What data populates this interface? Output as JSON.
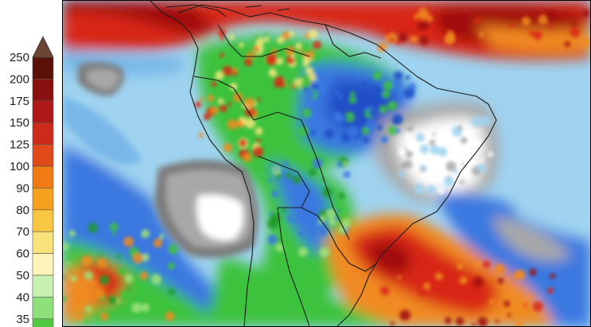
{
  "legend": {
    "ticks": [
      "250",
      "200",
      "175",
      "150",
      "125",
      "100",
      "90",
      "80",
      "70",
      "60",
      "50",
      "40",
      "35"
    ],
    "bin_colors": [
      "#5a1208",
      "#8a1010",
      "#b01818",
      "#cc2a1a",
      "#e04a18",
      "#f07a14",
      "#f6a020",
      "#f8c640",
      "#fae27a",
      "#fdf3b8",
      "#c8f0b0",
      "#8ee07a",
      "#50c840"
    ],
    "top_arrow_color": "#6b4433"
  },
  "map": {
    "colors": {
      "ocean_light": "#9fd3f0",
      "ocean_mid": "#78b8e8",
      "blue": "#3a78e0",
      "dark_blue": "#2050c8",
      "green_light": "#9ee07a",
      "green": "#3cc23c",
      "dark_green": "#1e9a28",
      "yellow": "#f4e87a",
      "orange": "#f08a20",
      "red": "#d82818",
      "dark_red": "#a01010",
      "gray": "#a8a8a8",
      "dark_gray": "#7a7a7a",
      "white": "#ffffff",
      "border": "#1a1a1a"
    }
  }
}
